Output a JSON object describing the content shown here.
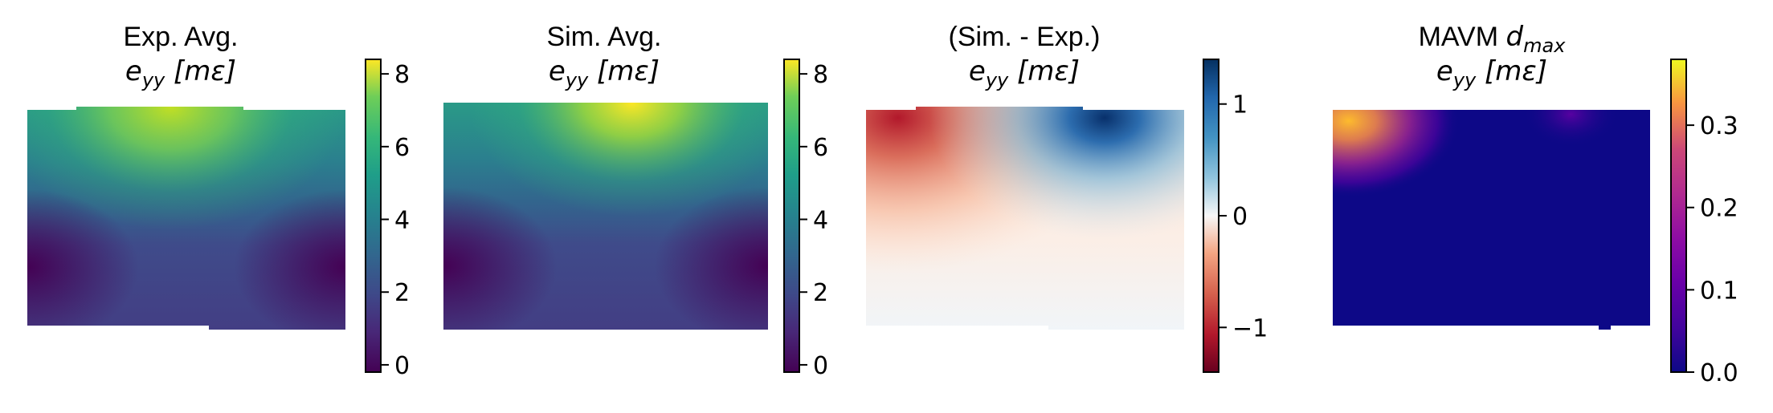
{
  "figure": {
    "panels": [
      {
        "title_line1": "Exp. Avg.",
        "title_line2_main": "e",
        "title_line2_sub": "yy",
        "title_line2_unit": " [mε]",
        "colormap": "viridis"
      },
      {
        "title_line1": "Sim. Avg.",
        "title_line2_main": "e",
        "title_line2_sub": "yy",
        "title_line2_unit": " [mε]",
        "colormap": "viridis"
      },
      {
        "title_line1": "(Sim. - Exp.)",
        "title_line2_main": "e",
        "title_line2_sub": "yy",
        "title_line2_unit": " [mε]",
        "colormap": "RdBu"
      },
      {
        "title_line1": "MAVM ",
        "title_line1_math": "d",
        "title_line1_sub": "max",
        "title_line2_main": "e",
        "title_line2_sub": "yy",
        "title_line2_unit": " [mε]",
        "colormap": "plasma"
      }
    ]
  },
  "chart_data": [
    {
      "type": "heatmap",
      "title": "Exp. Avg. e_yy [mε]",
      "colorbar": {
        "label": "",
        "range": [
          -0.2,
          8.4
        ],
        "ticks": [
          0,
          2,
          4,
          6,
          8
        ],
        "tick_labels": [
          "0",
          "2",
          "4",
          "6",
          "8"
        ]
      },
      "field_description": "values ~8 at top center, decreasing downward to ~0 at left/right lower edges, ~1 along bottom",
      "peak_value": 8,
      "min_value": 0
    },
    {
      "type": "heatmap",
      "title": "Sim. Avg. e_yy [mε]",
      "colorbar": {
        "label": "",
        "range": [
          -0.2,
          8.4
        ],
        "ticks": [
          0,
          2,
          4,
          6,
          8
        ],
        "tick_labels": [
          "0",
          "2",
          "4",
          "6",
          "8"
        ]
      },
      "peak_value": 8.3,
      "min_value": 0
    },
    {
      "type": "heatmap",
      "title": "(Sim. - Exp.) e_yy [mε]",
      "colorbar": {
        "label": "",
        "range": [
          -1.4,
          1.4
        ],
        "ticks": [
          -1,
          0,
          1
        ],
        "tick_labels": [
          "−1",
          "0",
          "1"
        ]
      },
      "peak_value": 1.3,
      "min_value": -1.3
    },
    {
      "type": "heatmap",
      "title": "MAVM d_max e_yy [mε]",
      "colorbar": {
        "label": "",
        "range": [
          0,
          0.38
        ],
        "ticks": [
          0.0,
          0.1,
          0.2,
          0.3
        ],
        "tick_labels": [
          "0.0",
          "0.1",
          "0.2",
          "0.3"
        ]
      },
      "peak_value": 0.35,
      "min_value": 0
    }
  ]
}
